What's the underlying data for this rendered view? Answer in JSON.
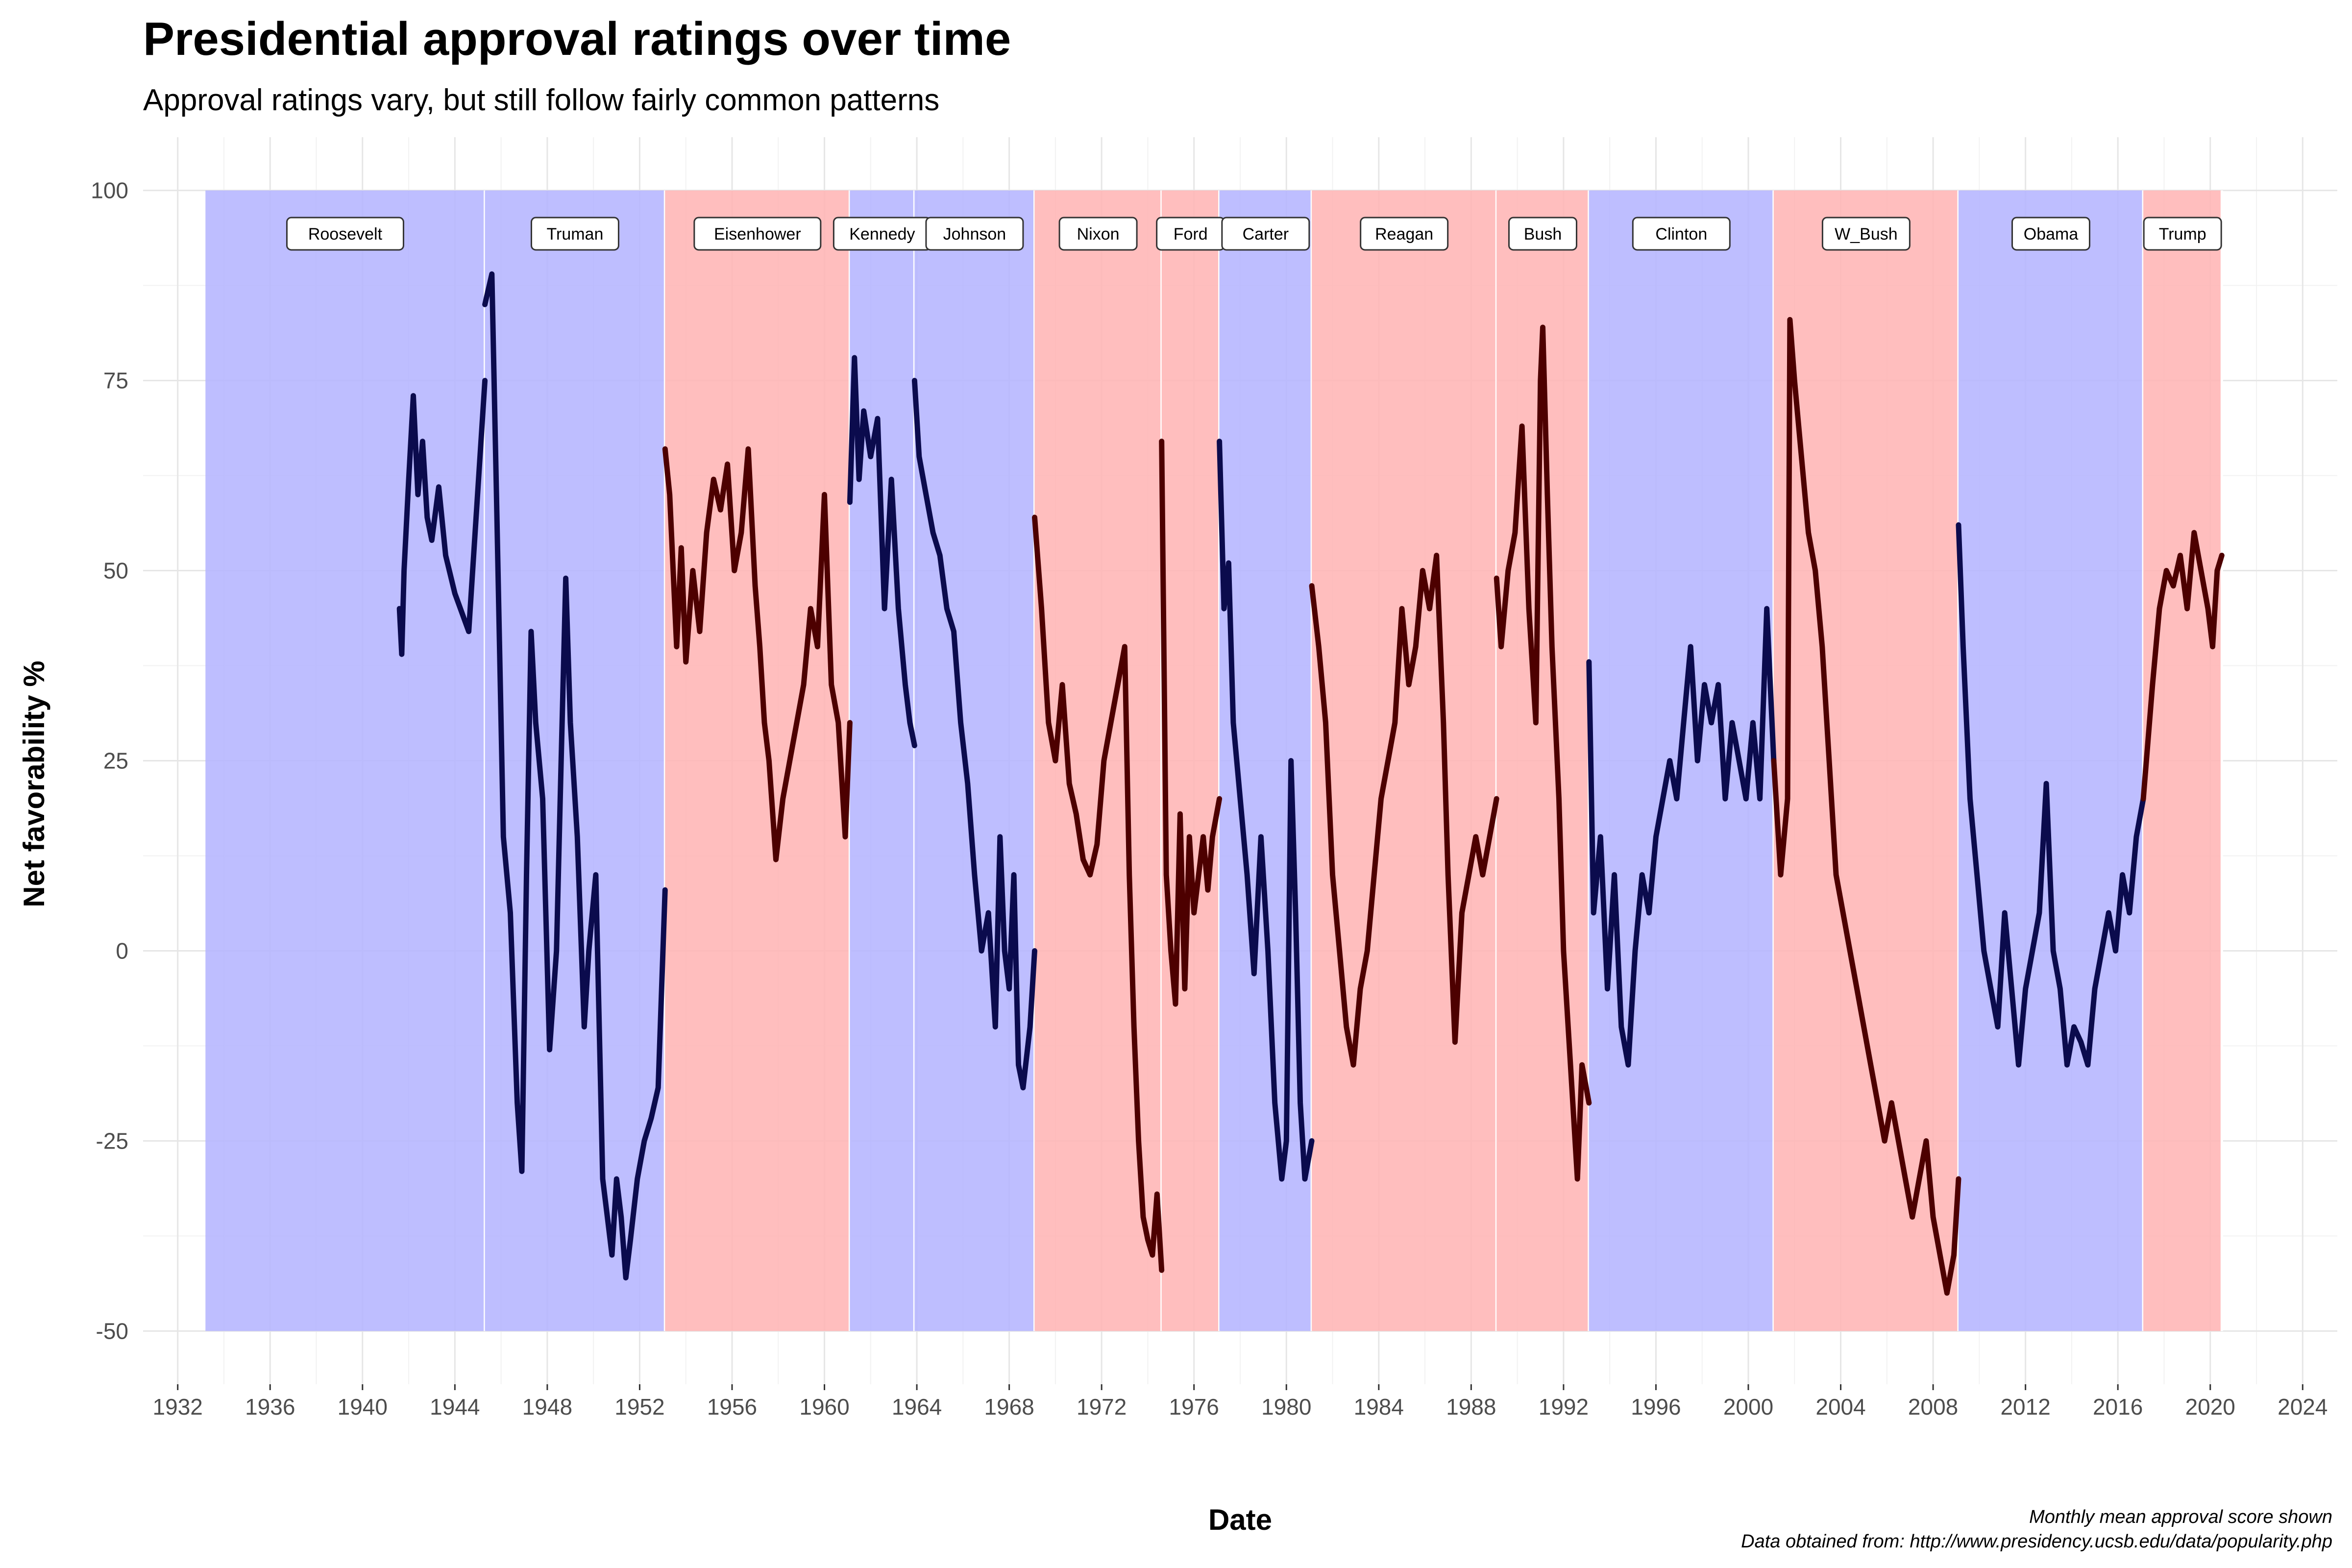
{
  "chart_data": {
    "type": "line",
    "title": "Presidential approval ratings over time",
    "subtitle": "Approval ratings vary, but still follow fairly common patterns",
    "xlabel": "Date",
    "ylabel": "Net favorability %",
    "caption": [
      "Monthly mean approval score shown",
      "Data obtained from: http://www.presidency.ucsb.edu/data/popularity.php"
    ],
    "xlim": [
      1930.5,
      2025.5
    ],
    "ylim": [
      -57,
      107
    ],
    "x_ticks": [
      1932,
      1936,
      1940,
      1944,
      1948,
      1952,
      1956,
      1960,
      1964,
      1968,
      1972,
      1976,
      1980,
      1984,
      1988,
      1992,
      1996,
      2000,
      2004,
      2008,
      2012,
      2016,
      2020,
      2024
    ],
    "y_ticks": [
      -50,
      -25,
      0,
      25,
      50,
      75,
      100
    ],
    "grid": true,
    "colors": {
      "democrat_band": "#b3b3ff",
      "republican_band": "#ffb3b3",
      "democrat_line": "#0b0b4d",
      "republican_line": "#4d0000",
      "background": "#ffffff"
    },
    "presidencies": [
      {
        "name": "Roosevelt",
        "party": "D",
        "start": 1933.2,
        "end": 1945.3
      },
      {
        "name": "Truman",
        "party": "D",
        "start": 1945.3,
        "end": 1953.1
      },
      {
        "name": "Eisenhower",
        "party": "R",
        "start": 1953.1,
        "end": 1961.1
      },
      {
        "name": "Kennedy",
        "party": "D",
        "start": 1961.1,
        "end": 1963.9
      },
      {
        "name": "Johnson",
        "party": "D",
        "start": 1963.9,
        "end": 1969.1
      },
      {
        "name": "Nixon",
        "party": "R",
        "start": 1969.1,
        "end": 1974.6
      },
      {
        "name": "Ford",
        "party": "R",
        "start": 1974.6,
        "end": 1977.1
      },
      {
        "name": "Carter",
        "party": "D",
        "start": 1977.1,
        "end": 1981.1
      },
      {
        "name": "Reagan",
        "party": "R",
        "start": 1981.1,
        "end": 1989.1
      },
      {
        "name": "Bush",
        "party": "R",
        "start": 1989.1,
        "end": 1993.1
      },
      {
        "name": "Clinton",
        "party": "D",
        "start": 1993.1,
        "end": 2001.1
      },
      {
        "name": "W_Bush",
        "party": "R",
        "start": 2001.1,
        "end": 2009.1
      },
      {
        "name": "Obama",
        "party": "D",
        "start": 2009.1,
        "end": 2017.1
      },
      {
        "name": "Trump",
        "party": "R",
        "start": 2017.1,
        "end": 2020.5
      }
    ],
    "series": [
      {
        "name": "Roosevelt",
        "party": "D",
        "x": [
          1941.6,
          1941.7,
          1941.8,
          1942.0,
          1942.2,
          1942.4,
          1942.6,
          1942.8,
          1943.0,
          1943.3,
          1943.6,
          1944.0,
          1944.6,
          1945.3
        ],
        "y": [
          45,
          39,
          50,
          62,
          73,
          60,
          67,
          57,
          54,
          61,
          52,
          47,
          42,
          75
        ]
      },
      {
        "name": "Truman",
        "party": "D",
        "x": [
          1945.3,
          1945.6,
          1945.8,
          1946.1,
          1946.4,
          1946.7,
          1946.9,
          1947.1,
          1947.3,
          1947.5,
          1947.8,
          1948.1,
          1948.4,
          1948.6,
          1948.8,
          1949.0,
          1949.3,
          1949.6,
          1949.8,
          1950.1,
          1950.4,
          1950.6,
          1950.8,
          1951.0,
          1951.2,
          1951.4,
          1951.6,
          1951.9,
          1952.2,
          1952.5,
          1952.8,
          1953.1
        ],
        "y": [
          85,
          89,
          60,
          15,
          5,
          -20,
          -29,
          10,
          42,
          30,
          20,
          -13,
          0,
          25,
          49,
          30,
          15,
          -10,
          0,
          10,
          -30,
          -35,
          -40,
          -30,
          -35,
          -43,
          -38,
          -30,
          -25,
          -22,
          -18,
          8
        ]
      },
      {
        "name": "Eisenhower",
        "party": "R",
        "x": [
          1953.1,
          1953.3,
          1953.6,
          1953.8,
          1954.0,
          1954.3,
          1954.6,
          1954.9,
          1955.2,
          1955.5,
          1955.8,
          1956.1,
          1956.4,
          1956.7,
          1957.0,
          1957.2,
          1957.4,
          1957.6,
          1957.9,
          1958.2,
          1958.5,
          1958.8,
          1959.1,
          1959.4,
          1959.7,
          1960.0,
          1960.3,
          1960.6,
          1960.9,
          1961.1
        ],
        "y": [
          66,
          60,
          40,
          53,
          38,
          50,
          42,
          55,
          62,
          58,
          64,
          50,
          55,
          66,
          48,
          40,
          30,
          25,
          12,
          20,
          25,
          30,
          35,
          45,
          40,
          60,
          35,
          30,
          15,
          30
        ]
      },
      {
        "name": "Kennedy",
        "party": "D",
        "x": [
          1961.1,
          1961.3,
          1961.5,
          1961.7,
          1962.0,
          1962.3,
          1962.6,
          1962.9,
          1963.2,
          1963.5,
          1963.7,
          1963.9
        ],
        "y": [
          59,
          78,
          62,
          71,
          65,
          70,
          45,
          62,
          45,
          35,
          30,
          27
        ]
      },
      {
        "name": "Johnson",
        "party": "D",
        "x": [
          1963.9,
          1964.1,
          1964.4,
          1964.7,
          1965.0,
          1965.3,
          1965.6,
          1965.9,
          1966.2,
          1966.5,
          1966.8,
          1967.1,
          1967.4,
          1967.6,
          1967.8,
          1968.0,
          1968.2,
          1968.4,
          1968.6,
          1968.9,
          1969.1
        ],
        "y": [
          75,
          65,
          60,
          55,
          52,
          45,
          42,
          30,
          22,
          10,
          0,
          5,
          -10,
          15,
          0,
          -5,
          10,
          -15,
          -18,
          -10,
          0
        ]
      },
      {
        "name": "Nixon",
        "party": "R",
        "x": [
          1969.1,
          1969.4,
          1969.7,
          1970.0,
          1970.3,
          1970.6,
          1970.9,
          1971.2,
          1971.5,
          1971.8,
          1972.1,
          1972.4,
          1972.7,
          1973.0,
          1973.2,
          1973.4,
          1973.6,
          1973.8,
          1974.0,
          1974.2,
          1974.4,
          1974.6
        ],
        "y": [
          57,
          45,
          30,
          25,
          35,
          22,
          18,
          12,
          10,
          14,
          25,
          30,
          35,
          40,
          10,
          -10,
          -25,
          -35,
          -38,
          -40,
          -32,
          -42
        ]
      },
      {
        "name": "Ford",
        "party": "R",
        "x": [
          1974.6,
          1974.8,
          1975.0,
          1975.2,
          1975.4,
          1975.6,
          1975.8,
          1976.0,
          1976.2,
          1976.4,
          1976.6,
          1976.8,
          1977.1
        ],
        "y": [
          67,
          10,
          0,
          -7,
          18,
          -5,
          15,
          5,
          10,
          15,
          8,
          15,
          20
        ]
      },
      {
        "name": "Carter",
        "party": "D",
        "x": [
          1977.1,
          1977.3,
          1977.5,
          1977.7,
          1978.0,
          1978.3,
          1978.6,
          1978.9,
          1979.2,
          1979.5,
          1979.8,
          1980.0,
          1980.2,
          1980.4,
          1980.6,
          1980.8,
          1981.1
        ],
        "y": [
          67,
          45,
          51,
          30,
          20,
          10,
          -3,
          15,
          0,
          -20,
          -30,
          -25,
          25,
          5,
          -20,
          -30,
          -25
        ]
      },
      {
        "name": "Reagan",
        "party": "R",
        "x": [
          1981.1,
          1981.4,
          1981.7,
          1982.0,
          1982.3,
          1982.6,
          1982.9,
          1983.2,
          1983.5,
          1983.8,
          1984.1,
          1984.4,
          1984.7,
          1985.0,
          1985.3,
          1985.6,
          1985.9,
          1986.2,
          1986.5,
          1986.8,
          1987.0,
          1987.3,
          1987.6,
          1987.9,
          1988.2,
          1988.5,
          1988.8,
          1989.1
        ],
        "y": [
          48,
          40,
          30,
          10,
          0,
          -10,
          -15,
          -5,
          0,
          10,
          20,
          25,
          30,
          45,
          35,
          40,
          50,
          45,
          52,
          30,
          10,
          -12,
          5,
          10,
          15,
          10,
          15,
          20
        ]
      },
      {
        "name": "Bush",
        "party": "R",
        "x": [
          1989.1,
          1989.3,
          1989.6,
          1989.9,
          1990.2,
          1990.5,
          1990.8,
          1991.0,
          1991.1,
          1991.3,
          1991.5,
          1991.8,
          1992.0,
          1992.2,
          1992.4,
          1992.6,
          1992.8,
          1993.1
        ],
        "y": [
          49,
          40,
          50,
          55,
          69,
          45,
          30,
          75,
          82,
          60,
          40,
          20,
          0,
          -10,
          -20,
          -30,
          -15,
          -20
        ]
      },
      {
        "name": "Clinton",
        "party": "D",
        "x": [
          1993.1,
          1993.3,
          1993.6,
          1993.9,
          1994.2,
          1994.5,
          1994.8,
          1995.1,
          1995.4,
          1995.7,
          1996.0,
          1996.3,
          1996.6,
          1996.9,
          1997.2,
          1997.5,
          1997.8,
          1998.1,
          1998.4,
          1998.7,
          1999.0,
          1999.3,
          1999.6,
          1999.9,
          2000.2,
          2000.5,
          2000.8,
          2001.1
        ],
        "y": [
          38,
          5,
          15,
          -5,
          10,
          -10,
          -15,
          0,
          10,
          5,
          15,
          20,
          25,
          20,
          30,
          40,
          25,
          35,
          30,
          35,
          20,
          30,
          25,
          20,
          30,
          20,
          45,
          25
        ]
      },
      {
        "name": "W_Bush",
        "party": "R",
        "x": [
          2001.1,
          2001.4,
          2001.7,
          2001.8,
          2002.0,
          2002.3,
          2002.6,
          2002.9,
          2003.2,
          2003.5,
          2003.8,
          2004.1,
          2004.4,
          2004.7,
          2005.0,
          2005.3,
          2005.6,
          2005.9,
          2006.2,
          2006.5,
          2006.8,
          2007.1,
          2007.4,
          2007.7,
          2008.0,
          2008.3,
          2008.6,
          2008.9,
          2009.1
        ],
        "y": [
          25,
          10,
          20,
          83,
          75,
          65,
          55,
          50,
          40,
          25,
          10,
          5,
          0,
          -5,
          -10,
          -15,
          -20,
          -25,
          -20,
          -25,
          -30,
          -35,
          -30,
          -25,
          -35,
          -40,
          -45,
          -40,
          -30
        ]
      },
      {
        "name": "Obama",
        "party": "D",
        "x": [
          2009.1,
          2009.3,
          2009.6,
          2009.9,
          2010.2,
          2010.5,
          2010.8,
          2011.1,
          2011.4,
          2011.7,
          2012.0,
          2012.3,
          2012.6,
          2012.9,
          2013.2,
          2013.5,
          2013.8,
          2014.1,
          2014.4,
          2014.7,
          2015.0,
          2015.3,
          2015.6,
          2015.9,
          2016.2,
          2016.5,
          2016.8,
          2017.1
        ],
        "y": [
          56,
          40,
          20,
          10,
          0,
          -5,
          -10,
          5,
          -5,
          -15,
          -5,
          0,
          5,
          22,
          0,
          -5,
          -15,
          -10,
          -12,
          -15,
          -5,
          0,
          5,
          0,
          10,
          5,
          15,
          20
        ]
      },
      {
        "name": "Trump",
        "party": "R",
        "x": [
          2017.1,
          2017.5,
          2017.8,
          2018.1,
          2018.4,
          2018.7,
          2019.0,
          2019.3,
          2019.6,
          2019.9,
          2020.1,
          2020.3,
          2020.5
        ],
        "y": [
          20,
          35,
          45,
          50,
          48,
          52,
          45,
          55,
          50,
          45,
          40,
          50,
          52
        ]
      }
    ]
  }
}
